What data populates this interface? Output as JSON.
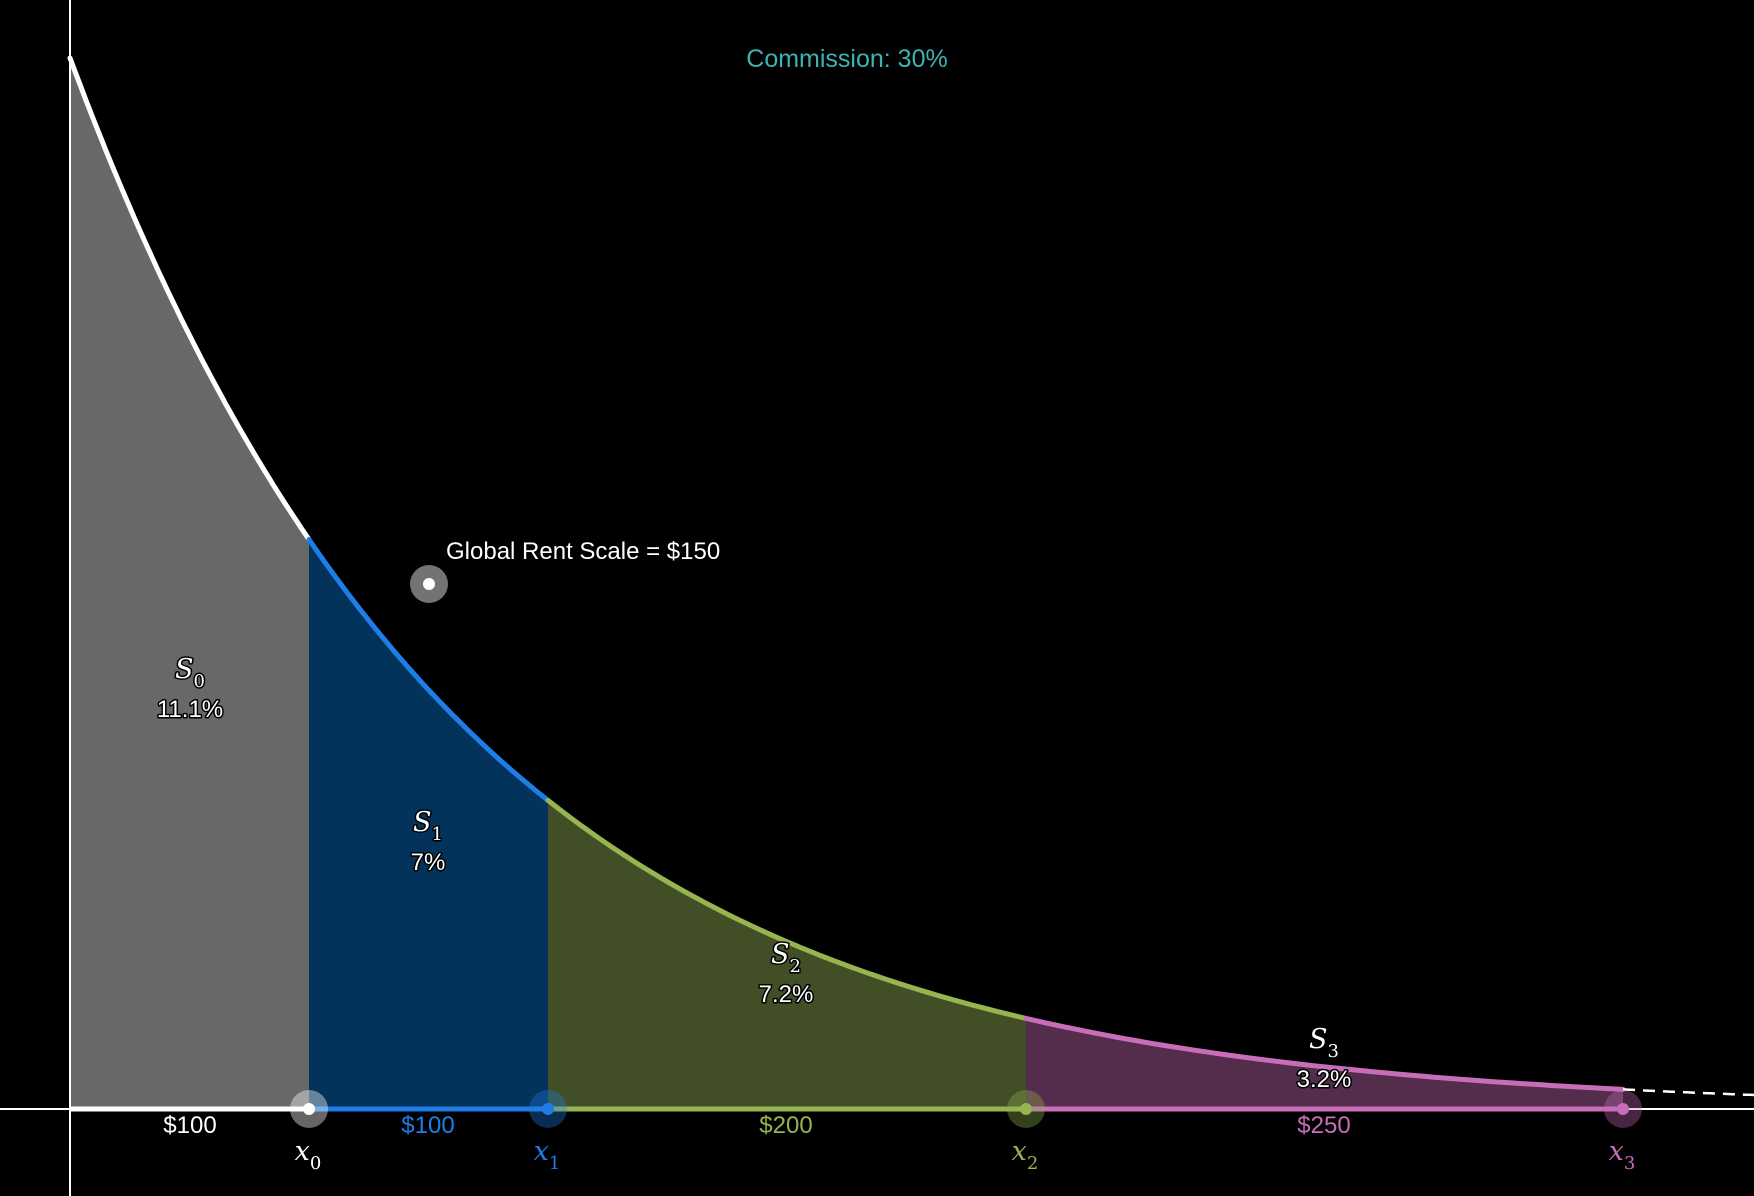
{
  "title": "Commission: 30%",
  "scale_label": "Global Rent Scale = $150",
  "colors": {
    "title": "#3cb4b4",
    "axis": "#ffffff",
    "background": "#000000",
    "dashed_tail": "#ffffff"
  },
  "segments": [
    {
      "area": "S",
      "area_sub": "0",
      "percent": "11.1%",
      "price": "$100",
      "marker": "x",
      "marker_sub": "0",
      "fill": "#686868",
      "line": "#ffffff",
      "text": "#ffffff"
    },
    {
      "area": "S",
      "area_sub": "1",
      "percent": "7%",
      "price": "$100",
      "marker": "x",
      "marker_sub": "1",
      "fill": "#03325a",
      "line": "#1e7de6",
      "text": "#1e7de6"
    },
    {
      "area": "S",
      "area_sub": "2",
      "percent": "7.2%",
      "price": "$200",
      "marker": "x",
      "marker_sub": "2",
      "fill": "#414e26",
      "line": "#96b450",
      "text": "#96b450"
    },
    {
      "area": "S",
      "area_sub": "3",
      "percent": "3.2%",
      "price": "$250",
      "marker": "x",
      "marker_sub": "3",
      "fill": "#532d4b",
      "line": "#c86eb9",
      "text": "#c86eb9"
    }
  ]
}
